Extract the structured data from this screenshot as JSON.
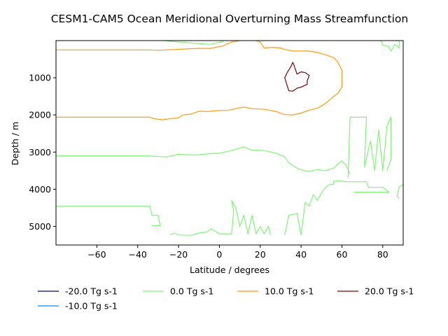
{
  "chart_data": {
    "type": "line",
    "subtype": "contour",
    "title": "CESM1-CAM5 Ocean Meridional Overturning Mass Streamfunction",
    "xlabel": "Latitude / degrees",
    "ylabel": "Depth / m",
    "xlim": [
      -80,
      90
    ],
    "ylim": [
      5500,
      0
    ],
    "y_inverted": true,
    "xticks": [
      -60,
      -40,
      -20,
      0,
      20,
      40,
      60,
      80
    ],
    "yticks": [
      1000,
      2000,
      3000,
      4000,
      5000
    ],
    "grid": false,
    "legend_position": "below plot, 4 columns",
    "series": [
      {
        "name": "-20.0 Tg s-1",
        "level": -20.0,
        "color": "#00008b",
        "lines": []
      },
      {
        "name": "-10.0 Tg s-1",
        "level": -10.0,
        "color": "#0a8cf0",
        "lines": []
      },
      {
        "name": "0.0 Tg s-1",
        "level": 0.0,
        "color": "#7ef575",
        "lines": [
          [
            [
              -27,
              0
            ],
            [
              -24,
              20
            ],
            [
              -5,
              100
            ],
            [
              1,
              40
            ],
            [
              2,
              0
            ]
          ],
          [
            [
              -80,
              3100
            ],
            [
              -35,
              3100
            ],
            [
              -26,
              3130
            ],
            [
              -20,
              3060
            ],
            [
              -12,
              3080
            ],
            [
              -4,
              3040
            ],
            [
              0,
              3030
            ],
            [
              6,
              2960
            ],
            [
              12,
              2860
            ],
            [
              16,
              2950
            ],
            [
              22,
              2960
            ],
            [
              28,
              3030
            ],
            [
              32,
              3130
            ],
            [
              34,
              3290
            ],
            [
              38,
              3430
            ],
            [
              40,
              3480
            ],
            [
              44,
              3520
            ],
            [
              48,
              3470
            ],
            [
              52,
              3500
            ],
            [
              56,
              3430
            ],
            [
              58,
              3320
            ],
            [
              60,
              3240
            ],
            [
              62,
              3350
            ],
            [
              64,
              3600
            ]
          ],
          [
            [
              -80,
              4450
            ],
            [
              -34,
              4450
            ],
            [
              -33,
              4700
            ],
            [
              -30,
              4700
            ],
            [
              -29,
              4980
            ],
            [
              -33,
              4980
            ]
          ],
          [
            [
              -24,
              5230
            ],
            [
              -22,
              5180
            ],
            [
              -20,
              5230
            ],
            [
              -14,
              5240
            ],
            [
              -10,
              5180
            ],
            [
              -6,
              5150
            ],
            [
              -4,
              5060
            ],
            [
              0,
              5200
            ],
            [
              6,
              5200
            ],
            [
              7,
              4600
            ],
            [
              6,
              4300
            ],
            [
              8,
              4500
            ],
            [
              10,
              5000
            ],
            [
              12,
              4700
            ],
            [
              14,
              5200
            ],
            [
              16,
              4700
            ],
            [
              18,
              5200
            ],
            [
              20,
              5000
            ],
            [
              22,
              5200
            ],
            [
              24,
              5000
            ],
            [
              25,
              5230
            ]
          ],
          [
            [
              32,
              5230
            ],
            [
              34,
              4700
            ],
            [
              38,
              4650
            ],
            [
              40,
              5230
            ],
            [
              42,
              4350
            ],
            [
              44,
              4450
            ],
            [
              46,
              4150
            ],
            [
              48,
              4300
            ],
            [
              50,
              4100
            ],
            [
              52,
              3950
            ],
            [
              54,
              3870
            ],
            [
              56,
              3870
            ],
            [
              56,
              3780
            ],
            [
              60,
              3780
            ],
            [
              62,
              3800
            ],
            [
              72,
              3800
            ],
            [
              73,
              3950
            ],
            [
              80,
              3950
            ],
            [
              82,
              4030
            ],
            [
              83,
              4080
            ],
            [
              66,
              4080
            ]
          ],
          [
            [
              63,
              3700
            ],
            [
              64,
              2060
            ],
            [
              72,
              2060
            ],
            [
              71,
              3400
            ],
            [
              74,
              2700
            ],
            [
              76,
              3500
            ],
            [
              78,
              2400
            ],
            [
              80,
              3500
            ],
            [
              82,
              2300
            ],
            [
              84,
              2060
            ],
            [
              84,
              3200
            ],
            [
              82,
              3500
            ]
          ],
          [
            [
              79,
              0
            ],
            [
              80,
              120
            ],
            [
              83,
              160
            ],
            [
              84,
              280
            ],
            [
              86,
              100
            ],
            [
              88,
              200
            ],
            [
              88,
              0
            ]
          ],
          [
            [
              88,
              4250
            ],
            [
              87,
              4180
            ],
            [
              88,
              3940
            ],
            [
              90,
              3870
            ]
          ]
        ]
      },
      {
        "name": "10.0 Tg s-1",
        "level": 10.0,
        "color": "#ff9a14",
        "lines": [
          [
            [
              -80,
              2060
            ],
            [
              -34,
              2060
            ],
            [
              -32,
              2100
            ],
            [
              -28,
              2130
            ],
            [
              -24,
              2100
            ],
            [
              -20,
              2080
            ],
            [
              -18,
              2000
            ],
            [
              -14,
              1980
            ],
            [
              -10,
              1900
            ],
            [
              -6,
              1910
            ],
            [
              0,
              1880
            ],
            [
              4,
              1880
            ],
            [
              8,
              1830
            ],
            [
              12,
              1790
            ],
            [
              16,
              1830
            ],
            [
              22,
              1850
            ],
            [
              28,
              1910
            ],
            [
              32,
              1990
            ],
            [
              36,
              2000
            ],
            [
              40,
              1950
            ],
            [
              44,
              1870
            ],
            [
              48,
              1820
            ],
            [
              52,
              1690
            ],
            [
              56,
              1500
            ],
            [
              58,
              1420
            ],
            [
              60,
              1250
            ],
            [
              60,
              1000
            ],
            [
              60,
              800
            ],
            [
              58,
              580
            ],
            [
              56,
              460
            ],
            [
              52,
              380
            ],
            [
              48,
              320
            ],
            [
              44,
              280
            ],
            [
              40,
              280
            ],
            [
              36,
              280
            ],
            [
              32,
              240
            ],
            [
              30,
              200
            ],
            [
              26,
              180
            ],
            [
              22,
              200
            ],
            [
              20,
              40
            ],
            [
              18,
              0
            ]
          ],
          [
            [
              -80,
              250
            ],
            [
              -34,
              250
            ],
            [
              -30,
              260
            ],
            [
              -10,
              210
            ],
            [
              -4,
              210
            ],
            [
              0,
              160
            ],
            [
              2,
              140
            ],
            [
              4,
              80
            ],
            [
              6,
              40
            ],
            [
              10,
              0
            ]
          ]
        ]
      },
      {
        "name": "20.0 Tg s-1",
        "level": 20.0,
        "color": "#800000",
        "lines": [
          [
            [
              36,
              580
            ],
            [
              35,
              700
            ],
            [
              33,
              880
            ],
            [
              32,
              1000
            ],
            [
              33,
              1180
            ],
            [
              34,
              1350
            ],
            [
              36,
              1360
            ],
            [
              38,
              1280
            ],
            [
              40,
              1250
            ],
            [
              42,
              1200
            ],
            [
              43,
              1180
            ],
            [
              43,
              1080
            ],
            [
              44,
              940
            ],
            [
              42,
              860
            ],
            [
              40,
              840
            ],
            [
              38,
              900
            ],
            [
              37,
              740
            ],
            [
              36,
              580
            ]
          ]
        ]
      }
    ]
  }
}
